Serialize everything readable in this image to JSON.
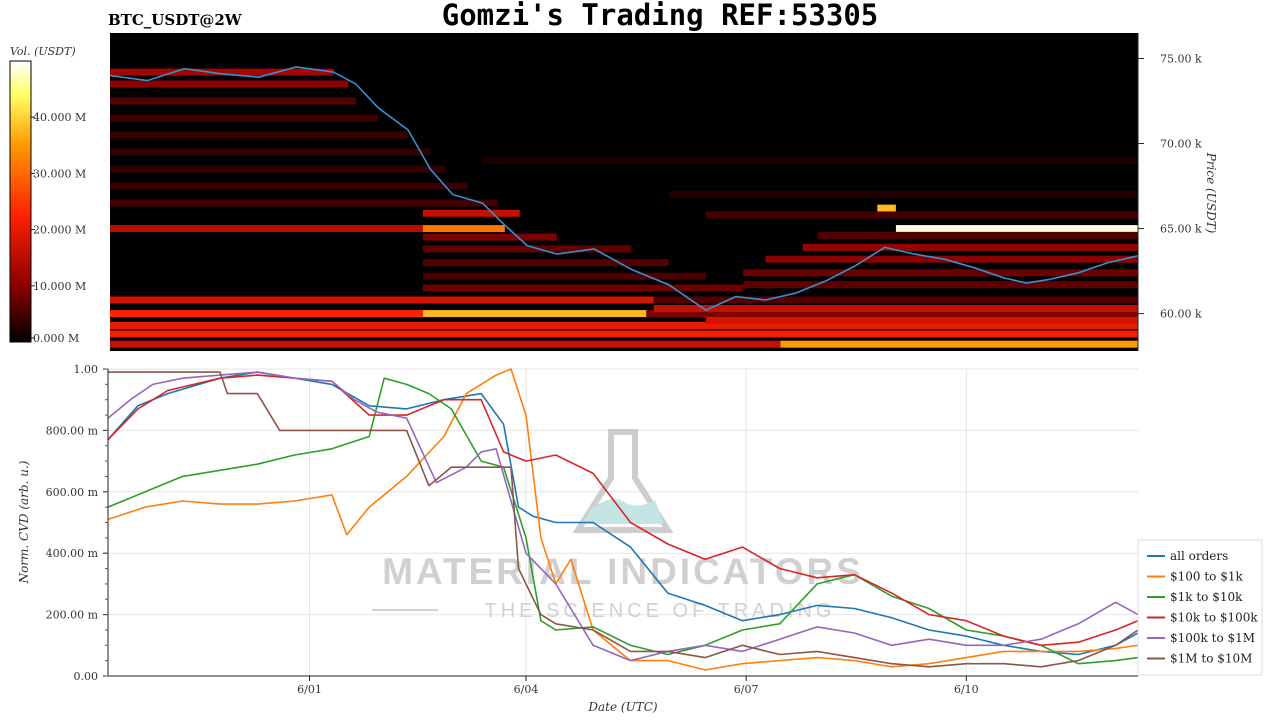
{
  "title": "Gomzi's Trading REF:53305",
  "subtitle": "BTC_USDT@2W",
  "watermark": {
    "brand": "MATERIAL INDICATORS",
    "tagline": "THE SCIENCE OF TRADING"
  },
  "chart_data": [
    {
      "type": "heatmap",
      "ylabel": "Price (USDT)",
      "ylim": [
        57800,
        76500
      ],
      "yticks": [
        {
          "value": 60000,
          "label": "60.00 k"
        },
        {
          "value": 65000,
          "label": "65.00 k"
        },
        {
          "value": 70000,
          "label": "70.00 k"
        },
        {
          "value": 75000,
          "label": "75.00 k"
        }
      ],
      "colorbar": {
        "label": "Vol. (USDT)",
        "range": [
          0,
          50000000
        ],
        "ticks": [
          {
            "value": 0,
            "label": "0.000 M"
          },
          {
            "value": 10000000,
            "label": "10.000 M"
          },
          {
            "value": 20000000,
            "label": "20.000 M"
          },
          {
            "value": 30000000,
            "label": "30.000 M"
          },
          {
            "value": 40000000,
            "label": "40.000 M"
          }
        ],
        "colors": [
          "#000000",
          "#8b0000",
          "#ff2000",
          "#ff9900",
          "#ffff66",
          "#ffffff"
        ]
      },
      "price_series": {
        "color": "#3a8fd0",
        "t": [
          0,
          0.5,
          1,
          1.5,
          2,
          2.5,
          3,
          3.3,
          3.6,
          4,
          4.3,
          4.6,
          5,
          5.3,
          5.6,
          6,
          6.5,
          7,
          7.5,
          8,
          8.4,
          8.8,
          9.2,
          9.6,
          10,
          10.4,
          10.8,
          11.2,
          11.6,
          12,
          12.3,
          12.6,
          13,
          13.4,
          13.8
        ],
        "price": [
          74000,
          73700,
          74400,
          74100,
          73900,
          74500,
          74200,
          73500,
          72100,
          70800,
          68500,
          67000,
          66500,
          65200,
          64000,
          63500,
          63800,
          62600,
          61700,
          60200,
          61000,
          60800,
          61200,
          61900,
          62800,
          63900,
          63500,
          63200,
          62700,
          62100,
          61800,
          62000,
          62400,
          63000,
          63400
        ]
      },
      "levels": [
        {
          "price": 74200,
          "t0": 0,
          "t1": 3,
          "vol": 12000000
        },
        {
          "price": 73500,
          "t0": 0,
          "t1": 3.2,
          "vol": 10000000
        },
        {
          "price": 72500,
          "t0": 0,
          "t1": 3.3,
          "vol": 6000000
        },
        {
          "price": 71500,
          "t0": 0,
          "t1": 3.6,
          "vol": 4500000
        },
        {
          "price": 70500,
          "t0": 0,
          "t1": 4,
          "vol": 4000000
        },
        {
          "price": 69500,
          "t0": 0,
          "t1": 4.3,
          "vol": 3500000
        },
        {
          "price": 68500,
          "t0": 0,
          "t1": 4.5,
          "vol": 3500000
        },
        {
          "price": 67500,
          "t0": 0,
          "t1": 4.8,
          "vol": 4000000
        },
        {
          "price": 66500,
          "t0": 0,
          "t1": 5.2,
          "vol": 5000000
        },
        {
          "price": 65900,
          "t0": 4.2,
          "t1": 5.5,
          "vol": 15000000
        },
        {
          "price": 65000,
          "t0": 0,
          "t1": 4.2,
          "vol": 14000000
        },
        {
          "price": 65000,
          "t0": 4.2,
          "t1": 5.3,
          "vol": 27000000
        },
        {
          "price": 64500,
          "t0": 4.2,
          "t1": 6,
          "vol": 9000000
        },
        {
          "price": 63800,
          "t0": 4.2,
          "t1": 7,
          "vol": 7000000
        },
        {
          "price": 63000,
          "t0": 4.2,
          "t1": 7.5,
          "vol": 6000000
        },
        {
          "price": 62200,
          "t0": 4.2,
          "t1": 8,
          "vol": 5500000
        },
        {
          "price": 61500,
          "t0": 4.2,
          "t1": 8.5,
          "vol": 8000000
        },
        {
          "price": 60800,
          "t0": 0,
          "t1": 7.3,
          "vol": 16000000
        },
        {
          "price": 60800,
          "t0": 7.3,
          "t1": 13.8,
          "vol": 6000000
        },
        {
          "price": 60000,
          "t0": 0,
          "t1": 4.2,
          "vol": 20000000
        },
        {
          "price": 60000,
          "t0": 4.2,
          "t1": 7.2,
          "vol": 33000000
        },
        {
          "price": 60000,
          "t0": 7.2,
          "t1": 13.8,
          "vol": 9000000
        },
        {
          "price": 59300,
          "t0": 0,
          "t1": 13.8,
          "vol": 18000000
        },
        {
          "price": 58800,
          "t0": 0,
          "t1": 13.8,
          "vol": 19000000
        },
        {
          "price": 58200,
          "t0": 0,
          "t1": 9,
          "vol": 15000000
        },
        {
          "price": 58200,
          "t0": 9,
          "t1": 13.8,
          "vol": 30000000
        },
        {
          "price": 66200,
          "t0": 10.3,
          "t1": 10.55,
          "vol": 33000000
        },
        {
          "price": 65800,
          "t0": 8,
          "t1": 13.8,
          "vol": 5000000
        },
        {
          "price": 65000,
          "t0": 10.55,
          "t1": 13.8,
          "vol": 48000000
        },
        {
          "price": 64600,
          "t0": 9.5,
          "t1": 13.8,
          "vol": 6000000
        },
        {
          "price": 63900,
          "t0": 9.3,
          "t1": 13.8,
          "vol": 11000000
        },
        {
          "price": 63200,
          "t0": 8.8,
          "t1": 13.8,
          "vol": 10000000
        },
        {
          "price": 62400,
          "t0": 8.5,
          "t1": 13.8,
          "vol": 8000000
        },
        {
          "price": 61700,
          "t0": 8.5,
          "t1": 13.8,
          "vol": 7000000
        },
        {
          "price": 60300,
          "t0": 7.3,
          "t1": 13.8,
          "vol": 15000000
        },
        {
          "price": 59600,
          "t0": 8,
          "t1": 13.8,
          "vol": 16000000
        },
        {
          "price": 69000,
          "t0": 5,
          "t1": 13.8,
          "vol": 2000000
        },
        {
          "price": 67000,
          "t0": 7.5,
          "t1": 13.8,
          "vol": 2500000
        }
      ]
    },
    {
      "type": "line",
      "xlabel": "Date (UTC)",
      "ylabel": "Norm. CVD (arb. u.)",
      "xlim": [
        0,
        13.8
      ],
      "ylim": [
        0,
        1
      ],
      "xticks": [
        {
          "value": 2.7,
          "label": "6/01"
        },
        {
          "value": 5.6,
          "label": "6/04"
        },
        {
          "value": 8.55,
          "label": "6/07"
        },
        {
          "value": 11.5,
          "label": "6/10"
        }
      ],
      "yticks": [
        {
          "value": 0,
          "label": "0.00"
        },
        {
          "value": 0.2,
          "label": "200.00 m"
        },
        {
          "value": 0.4,
          "label": "400.00 m"
        },
        {
          "value": 0.6,
          "label": "600.00 m"
        },
        {
          "value": 0.8,
          "label": "800.00 m"
        },
        {
          "value": 1,
          "label": "1.00"
        }
      ],
      "legend_position": "right",
      "series": [
        {
          "name": "all orders",
          "color": "#1f77b4",
          "x": [
            0,
            0.4,
            0.8,
            1.5,
            2,
            2.5,
            3,
            3.5,
            4,
            4.5,
            5,
            5.3,
            5.5,
            5.7,
            6,
            6.5,
            7,
            7.5,
            8,
            8.5,
            9,
            9.5,
            10,
            10.5,
            11,
            11.5,
            12,
            12.5,
            13,
            13.5,
            13.8
          ],
          "y": [
            0.77,
            0.88,
            0.92,
            0.97,
            0.99,
            0.97,
            0.95,
            0.88,
            0.87,
            0.9,
            0.92,
            0.82,
            0.55,
            0.52,
            0.5,
            0.5,
            0.42,
            0.27,
            0.23,
            0.18,
            0.2,
            0.23,
            0.22,
            0.19,
            0.15,
            0.13,
            0.1,
            0.08,
            0.07,
            0.1,
            0.14
          ]
        },
        {
          "name": "$100 to $1k",
          "color": "#ff7f0e",
          "x": [
            0,
            0.5,
            1,
            1.5,
            2,
            2.5,
            3,
            3.2,
            3.5,
            4,
            4.5,
            4.8,
            5.2,
            5.4,
            5.6,
            5.8,
            6,
            6.2,
            6.5,
            7,
            7.5,
            8,
            8.5,
            9,
            9.5,
            10,
            10.5,
            11,
            11.5,
            12,
            12.5,
            13,
            13.5,
            13.8
          ],
          "y": [
            0.51,
            0.55,
            0.57,
            0.56,
            0.56,
            0.57,
            0.59,
            0.46,
            0.55,
            0.65,
            0.78,
            0.92,
            0.98,
            1.0,
            0.85,
            0.45,
            0.3,
            0.38,
            0.15,
            0.05,
            0.05,
            0.02,
            0.04,
            0.05,
            0.06,
            0.05,
            0.03,
            0.04,
            0.06,
            0.08,
            0.08,
            0.08,
            0.09,
            0.1
          ]
        },
        {
          "name": "$1k to $10k",
          "color": "#2ca02c",
          "x": [
            0,
            0.5,
            1,
            1.5,
            2,
            2.5,
            3,
            3.5,
            3.7,
            4,
            4.3,
            4.6,
            5,
            5.3,
            5.6,
            5.8,
            6,
            6.5,
            7,
            7.5,
            8,
            8.5,
            9,
            9.5,
            10,
            10.5,
            11,
            11.5,
            12,
            12.5,
            13,
            13.5,
            13.8
          ],
          "y": [
            0.55,
            0.6,
            0.65,
            0.67,
            0.69,
            0.72,
            0.74,
            0.78,
            0.97,
            0.95,
            0.92,
            0.87,
            0.7,
            0.68,
            0.45,
            0.18,
            0.15,
            0.16,
            0.1,
            0.07,
            0.1,
            0.15,
            0.17,
            0.3,
            0.33,
            0.26,
            0.22,
            0.15,
            0.13,
            0.1,
            0.04,
            0.05,
            0.06
          ]
        },
        {
          "name": "$10k to $100k",
          "color": "#d62728",
          "x": [
            0,
            0.4,
            0.8,
            1.5,
            2,
            2.5,
            3,
            3.5,
            4,
            4.5,
            5,
            5.3,
            5.6,
            6,
            6.5,
            7,
            7.5,
            8,
            8.5,
            9,
            9.5,
            10,
            10.5,
            11,
            11.5,
            12,
            12.5,
            13,
            13.5,
            13.8
          ],
          "y": [
            0.77,
            0.87,
            0.93,
            0.97,
            0.98,
            0.97,
            0.96,
            0.85,
            0.85,
            0.9,
            0.9,
            0.73,
            0.7,
            0.72,
            0.66,
            0.5,
            0.43,
            0.38,
            0.42,
            0.35,
            0.32,
            0.33,
            0.27,
            0.2,
            0.18,
            0.13,
            0.1,
            0.11,
            0.15,
            0.18
          ]
        },
        {
          "name": "$100k to $1M",
          "color": "#9467bd",
          "x": [
            0,
            0.3,
            0.6,
            1,
            1.5,
            2,
            2.5,
            3,
            3.3,
            3.6,
            4,
            4.4,
            4.8,
            5,
            5.2,
            5.6,
            6,
            6.5,
            7,
            7.5,
            8,
            8.5,
            9,
            9.5,
            10,
            10.5,
            11,
            11.5,
            12,
            12.5,
            13,
            13.5,
            13.8
          ],
          "y": [
            0.84,
            0.9,
            0.95,
            0.97,
            0.98,
            0.99,
            0.97,
            0.96,
            0.9,
            0.86,
            0.84,
            0.63,
            0.68,
            0.73,
            0.74,
            0.4,
            0.3,
            0.1,
            0.05,
            0.08,
            0.1,
            0.08,
            0.12,
            0.16,
            0.14,
            0.1,
            0.12,
            0.1,
            0.1,
            0.12,
            0.17,
            0.24,
            0.2
          ]
        },
        {
          "name": "$1M to $10M",
          "color": "#8c564b",
          "x": [
            0,
            1,
            1.5,
            1.6,
            2,
            2.2,
            2.3,
            3,
            3.5,
            4,
            4.3,
            4.6,
            5,
            5.4,
            5.5,
            5.8,
            6,
            6.5,
            7,
            7.5,
            8,
            8.5,
            9,
            9.5,
            10,
            10.5,
            11,
            11.5,
            12,
            12.5,
            13,
            13.5,
            13.8
          ],
          "y": [
            0.99,
            0.99,
            0.99,
            0.92,
            0.92,
            0.84,
            0.8,
            0.8,
            0.8,
            0.8,
            0.62,
            0.68,
            0.68,
            0.68,
            0.35,
            0.2,
            0.17,
            0.15,
            0.08,
            0.08,
            0.06,
            0.1,
            0.07,
            0.08,
            0.06,
            0.04,
            0.03,
            0.04,
            0.04,
            0.03,
            0.05,
            0.1,
            0.15
          ]
        }
      ]
    }
  ]
}
